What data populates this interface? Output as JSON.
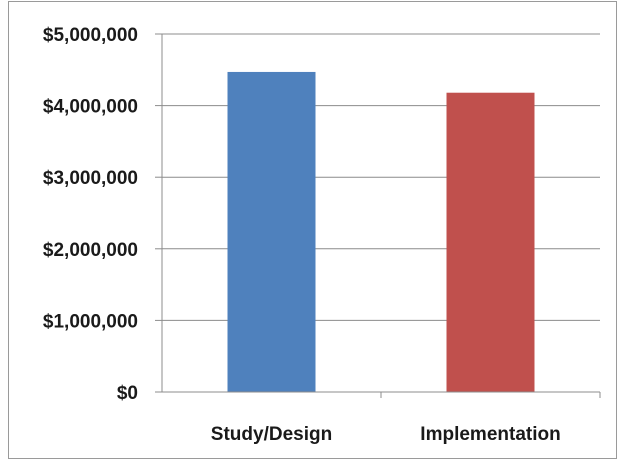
{
  "chart_data": {
    "type": "bar",
    "categories": [
      "Study/Design",
      "Implementation"
    ],
    "values": [
      4470000,
      4180000
    ],
    "ylim": [
      0,
      5000000
    ],
    "yticks": [
      0,
      1000000,
      2000000,
      3000000,
      4000000,
      5000000
    ],
    "ytick_labels": [
      "$0",
      "$1,000,000",
      "$2,000,000",
      "$3,000,000",
      "$4,000,000",
      "$5,000,000"
    ],
    "colors": [
      "#4f81bd",
      "#c0504d"
    ],
    "grid": true,
    "legend": "none",
    "title": "",
    "xlabel": "",
    "ylabel": ""
  }
}
